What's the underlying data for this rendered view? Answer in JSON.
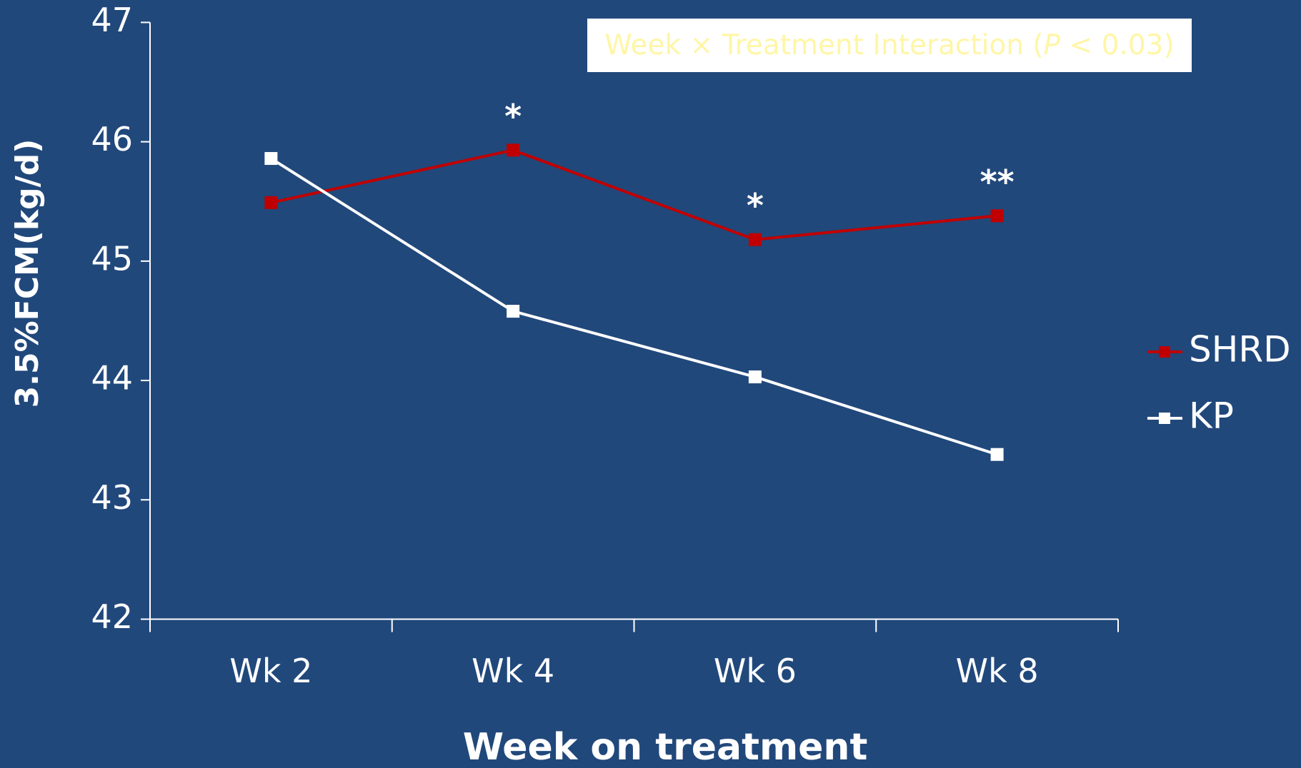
{
  "chart_data": {
    "type": "line",
    "x_label": "Week on treatment",
    "y_label": "3.5%FCM(kg/d)",
    "annotation_box": {
      "parts": [
        "Week × Treatment Interaction (",
        "P",
        " < 0.03)"
      ]
    },
    "categories": [
      "Wk 2",
      "Wk 4",
      "Wk 6",
      "Wk 8"
    ],
    "series": [
      {
        "name": "SHRD",
        "color": "#c00000",
        "values": [
          45.49,
          45.93,
          45.18,
          45.38
        ]
      },
      {
        "name": "KP",
        "color": "#ffffff",
        "values": [
          45.86,
          44.58,
          44.03,
          43.38
        ]
      }
    ],
    "significance": [
      {
        "category": "Wk 4",
        "text": "*"
      },
      {
        "category": "Wk 6",
        "text": "*"
      },
      {
        "category": "Wk 8",
        "text": "**"
      }
    ],
    "ylim": [
      42,
      47
    ],
    "yticks": [
      42,
      43,
      44,
      45,
      46,
      47
    ],
    "legend": "right"
  }
}
